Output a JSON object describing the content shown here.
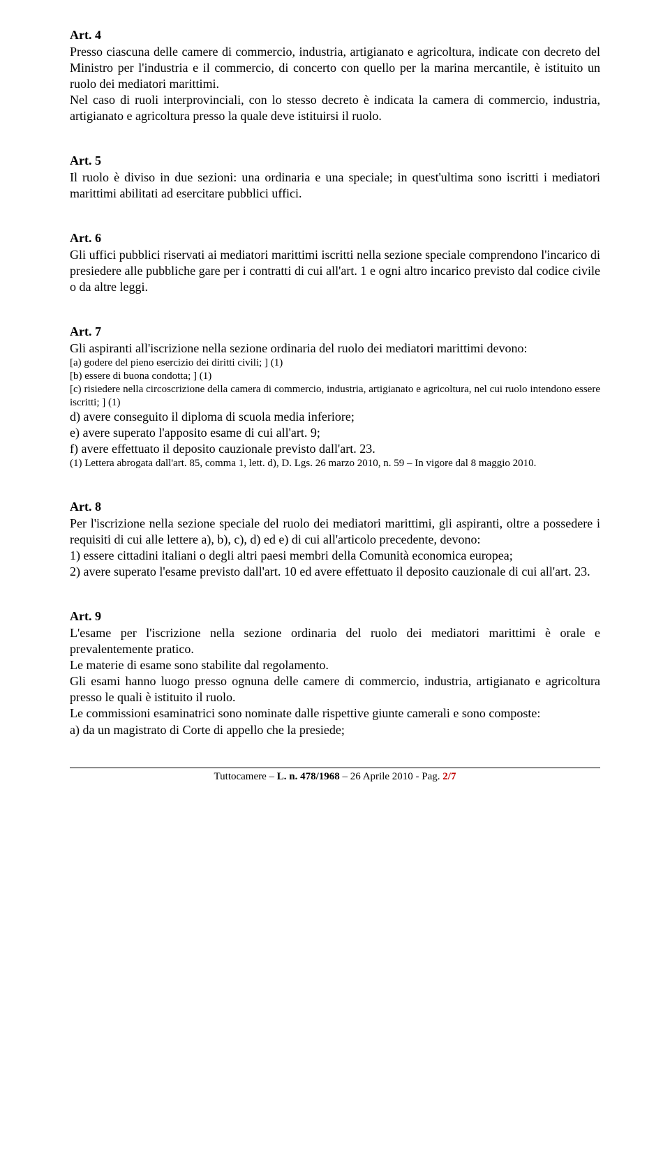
{
  "art4": {
    "title": "Art. 4",
    "p1": "Presso ciascuna delle camere di commercio, industria, artigianato e agricoltura, indicate con decreto del Ministro per l'industria e il commercio, di concerto con quello per la marina mercantile, è istituito un ruolo dei mediatori marittimi.",
    "p2": "Nel caso di ruoli interprovinciali, con lo stesso decreto è indicata la camera di commercio, industria, artigianato e agricoltura presso la quale deve istituirsi il ruolo."
  },
  "art5": {
    "title": "Art. 5",
    "p1": "Il ruolo è diviso in due sezioni: una ordinaria e una speciale; in quest'ultima sono iscritti i mediatori marittimi abilitati ad esercitare pubblici uffici."
  },
  "art6": {
    "title": "Art. 6",
    "p1": "Gli uffici pubblici riservati ai mediatori marittimi iscritti nella sezione speciale comprendono l'incarico di presiedere alle pubbliche gare per i contratti di cui all'art. 1 e ogni altro incarico previsto dal codice civile o da altre leggi."
  },
  "art7": {
    "title": "Art. 7",
    "intro": "Gli aspiranti all'iscrizione nella sezione ordinaria del ruolo dei mediatori marittimi devono:",
    "a": "[a) godere del pieno esercizio dei diritti civili; ] (1)",
    "b": "[b) essere di buona condotta; ] (1)",
    "c": "[c) risiedere nella circoscrizione della camera di commercio, industria, artigianato e agricoltura, nel cui ruolo intendono essere iscritti; ] (1)",
    "d": "d) avere conseguito il diploma di scuola media inferiore;",
    "e": "e) avere superato l'apposito esame di cui all'art. 9;",
    "f": "f) avere effettuato il deposito cauzionale previsto dall'art. 23.",
    "note": "(1) Lettera abrogata dall'art. 85, comma 1, lett. d), D. Lgs. 26 marzo 2010, n. 59 – In vigore dal 8 maggio 2010."
  },
  "art8": {
    "title": "Art. 8",
    "p1": "Per l'iscrizione nella sezione speciale del ruolo dei mediatori marittimi, gli aspiranti, oltre a possedere i requisiti di cui alle lettere a), b), c), d) ed e) di cui all'articolo precedente, devono:",
    "p2": "1) essere cittadini italiani o degli altri paesi membri della Comunità economica europea;",
    "p3": "2) avere superato l'esame previsto dall'art. 10 ed avere effettuato il deposito cauzionale di cui all'art. 23."
  },
  "art9": {
    "title": "Art. 9",
    "p1": "L'esame per l'iscrizione nella sezione ordinaria del ruolo dei mediatori marittimi è orale e prevalentemente pratico.",
    "p2": "Le materie di esame sono stabilite dal regolamento.",
    "p3": "Gli esami hanno luogo presso ognuna delle camere di commercio, industria, artigianato e agricoltura presso le quali è istituito il ruolo.",
    "p4": "Le commissioni esaminatrici sono nominate dalle rispettive giunte camerali e sono composte:",
    "p5": "a) da un magistrato di Corte di appello che la presiede;"
  },
  "footer": {
    "src": "Tuttocamere – ",
    "law": "L. n. 478/1968",
    "date": " – 26 Aprile 2010 - Pag. ",
    "page": "2/7"
  }
}
